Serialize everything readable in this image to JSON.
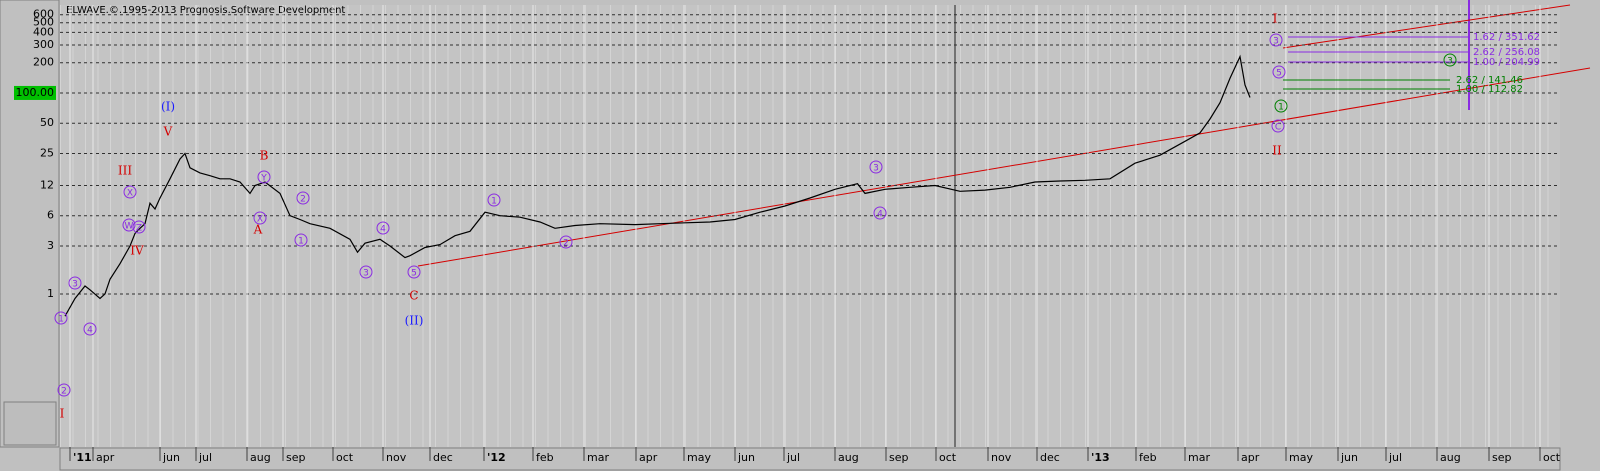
{
  "chart_data": {
    "type": "line",
    "title": "ELWAVE.©.1995-2013 Prognosis.Software Development",
    "log_scale": true,
    "grid": true,
    "ylim": [
      0.03,
      750
    ],
    "yticks": [
      600,
      500,
      400,
      300,
      200,
      {
        "value": 100,
        "label": "100.00"
      },
      50,
      25,
      12,
      6,
      3,
      1
    ],
    "xlim": [
      0,
      30
    ],
    "xticks": [
      {
        "value": 0.2,
        "label": "'11"
      },
      {
        "value": 0.66,
        "label": "apr"
      },
      {
        "value": 2.0,
        "label": "jun"
      },
      {
        "value": 2.72,
        "label": "jul"
      },
      {
        "value": 3.74,
        "label": "aug"
      },
      {
        "value": 4.46,
        "label": "sep"
      },
      {
        "value": 5.46,
        "label": "oct"
      },
      {
        "value": 6.46,
        "label": "nov"
      },
      {
        "value": 7.4,
        "label": "dec"
      },
      {
        "value": 8.48,
        "label": "'12"
      },
      {
        "value": 9.46,
        "label": "feb"
      },
      {
        "value": 10.48,
        "label": "mar"
      },
      {
        "value": 11.52,
        "label": "apr"
      },
      {
        "value": 12.48,
        "label": "may"
      },
      {
        "value": 13.5,
        "label": "jun"
      },
      {
        "value": 14.48,
        "label": "jul"
      },
      {
        "value": 15.5,
        "label": "aug"
      },
      {
        "value": 16.52,
        "label": "sep"
      },
      {
        "value": 17.52,
        "label": "oct"
      },
      {
        "value": 18.56,
        "label": "nov"
      },
      {
        "value": 19.54,
        "label": "dec"
      },
      {
        "value": 20.56,
        "label": "'13"
      },
      {
        "value": 21.52,
        "label": "feb"
      },
      {
        "value": 22.5,
        "label": "mar"
      },
      {
        "value": 23.56,
        "label": "apr"
      },
      {
        "value": 24.52,
        "label": "may"
      },
      {
        "value": 25.56,
        "label": "jun"
      },
      {
        "value": 26.52,
        "label": "jul"
      },
      {
        "value": 27.54,
        "label": "aug"
      },
      {
        "value": 28.58,
        "label": "sep"
      },
      {
        "value": 29.6,
        "label": "oct"
      }
    ],
    "x": [
      0.1,
      0.3,
      0.5,
      0.6,
      0.8,
      0.9,
      1.0,
      1.2,
      1.4,
      1.5,
      1.6,
      1.7,
      1.8,
      1.9,
      2.0,
      2.2,
      2.4,
      2.5,
      2.6,
      2.8,
      3.0,
      3.2,
      3.4,
      3.6,
      3.8,
      3.9,
      4.1,
      4.4,
      4.6,
      4.8,
      5.0,
      5.4,
      5.8,
      5.95,
      6.1,
      6.4,
      6.6,
      6.9,
      7.0,
      7.3,
      7.6,
      7.9,
      8.2,
      8.5,
      8.8,
      9.2,
      9.6,
      9.9,
      10.3,
      10.8,
      11.5,
      12.0,
      12.5,
      13.0,
      13.5,
      14.0,
      14.5,
      15.0,
      15.5,
      15.95,
      16.1,
      16.5,
      17.0,
      17.5,
      18.0,
      18.5,
      19.0,
      19.5,
      20.0,
      20.5,
      21.0,
      21.5,
      22.0,
      22.5,
      22.8,
      23.0,
      23.2,
      23.4,
      23.6,
      23.7,
      23.8
    ],
    "series": [
      {
        "color": "#000000",
        "values": [
          0.6,
          0.9,
          1.2,
          1.1,
          0.9,
          1.0,
          1.4,
          2.0,
          3,
          4,
          4.5,
          5,
          8,
          7,
          9,
          14,
          22,
          25,
          18,
          16,
          15,
          14,
          14,
          13,
          10,
          12,
          13,
          10,
          6,
          5.5,
          5,
          4.5,
          3.5,
          2.6,
          3.2,
          3.5,
          3,
          2.3,
          2.4,
          2.9,
          3.1,
          3.8,
          4.2,
          6.5,
          6,
          5.8,
          5.2,
          4.5,
          4.8,
          5,
          4.9,
          5,
          5.1,
          5.2,
          5.5,
          6.5,
          7.5,
          9,
          11,
          12.5,
          10,
          11,
          11.5,
          12,
          10.5,
          10.8,
          11.5,
          13,
          13.3,
          13.5,
          14,
          20,
          24,
          33,
          40,
          55,
          80,
          140,
          230,
          120,
          90
        ]
      }
    ],
    "annotations": [
      "I",
      "2",
      "1",
      "3",
      "4",
      "III",
      "IV",
      "X",
      "W",
      "Z",
      "(I)",
      "V",
      "B",
      "Y",
      "X",
      "A",
      "2",
      "1",
      "3",
      "4",
      "5",
      "C",
      "(II)",
      "1",
      "2",
      "3",
      "4",
      "I",
      "3",
      "5",
      "C",
      "II",
      "1",
      "3"
    ],
    "levels": [
      "1.62 / 351.62",
      "2.62 / 256.08",
      "1.00 / 204.99",
      "2.62 / 141.46",
      "1.00 / 112.82"
    ]
  }
}
